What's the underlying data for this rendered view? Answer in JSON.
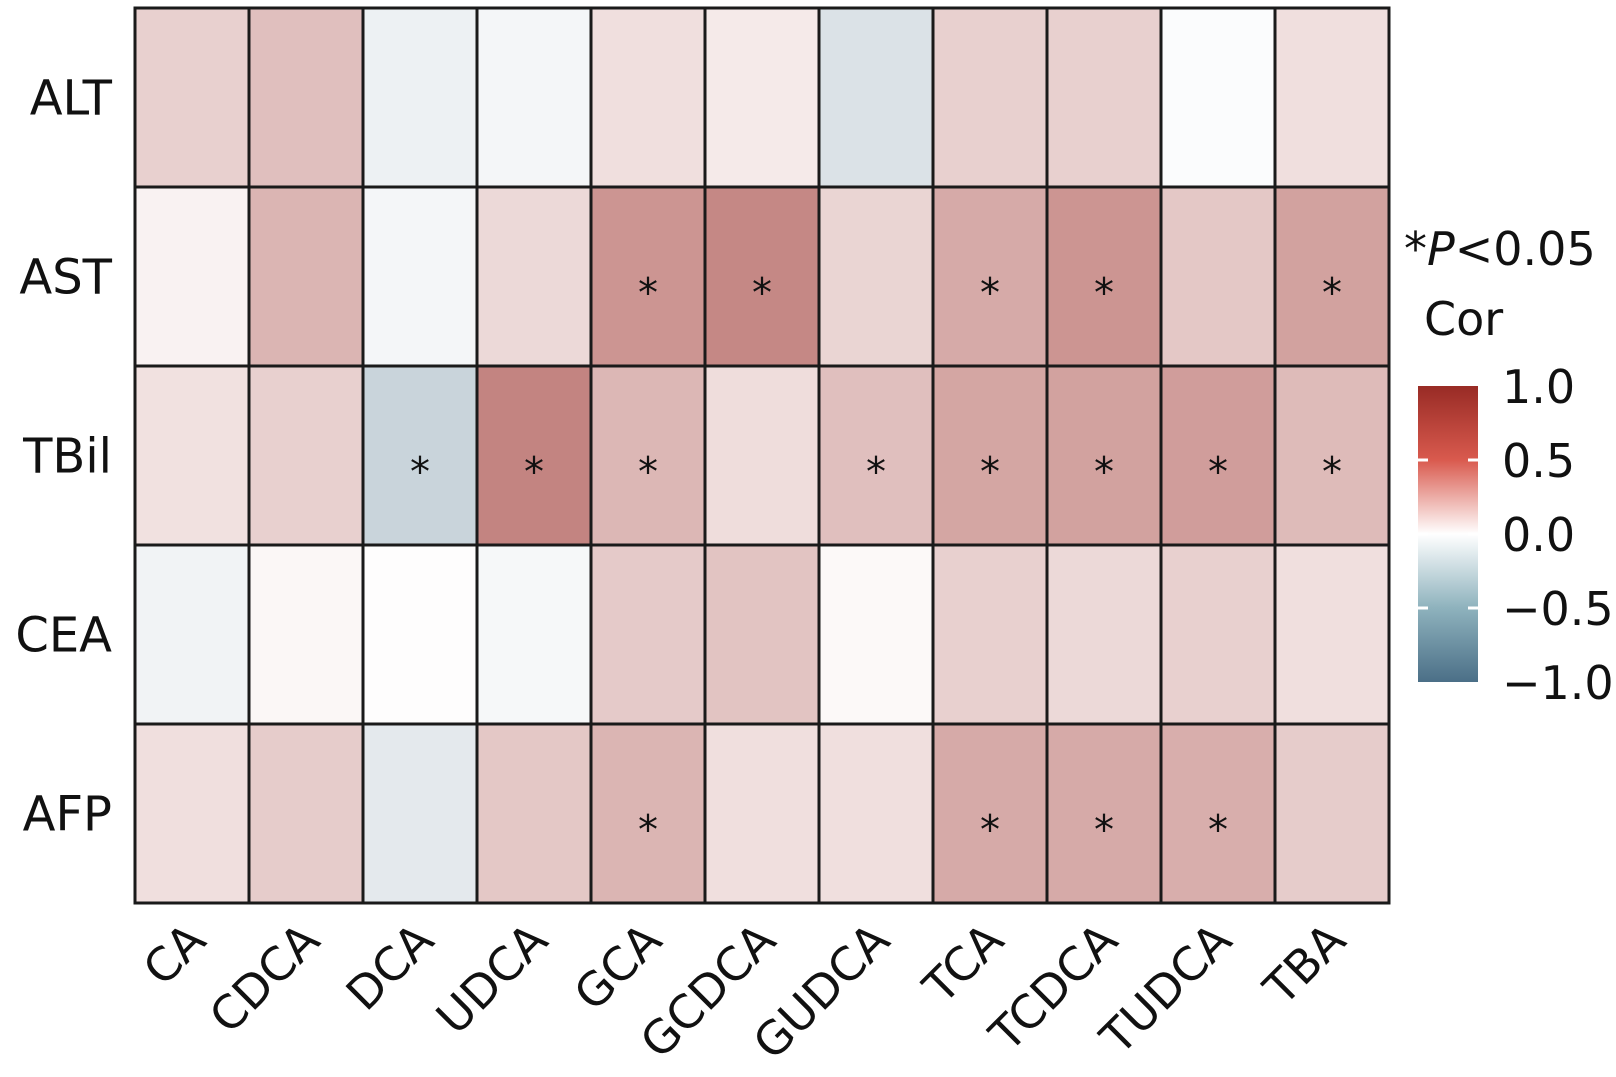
{
  "chart_data": {
    "type": "heatmap",
    "rows": [
      "ALT",
      "AST",
      "TBil",
      "CEA",
      "AFP"
    ],
    "columns": [
      "CA",
      "CDCA",
      "DCA",
      "UDCA",
      "GCA",
      "GCDCA",
      "GUDCA",
      "TCA",
      "TCDCA",
      "TUDCA",
      "TBA"
    ],
    "values": [
      [
        0.22,
        0.3,
        -0.1,
        -0.06,
        0.15,
        0.1,
        -0.2,
        0.22,
        0.22,
        -0.02,
        0.15
      ],
      [
        0.06,
        0.35,
        -0.06,
        0.18,
        0.5,
        0.56,
        0.2,
        0.4,
        0.5,
        0.26,
        0.44
      ],
      [
        0.14,
        0.22,
        -0.3,
        0.58,
        0.34,
        0.16,
        0.3,
        0.42,
        0.44,
        0.46,
        0.32
      ],
      [
        -0.08,
        0.04,
        0.01,
        -0.05,
        0.25,
        0.28,
        0.03,
        0.22,
        0.18,
        0.22,
        0.15
      ],
      [
        0.15,
        0.24,
        -0.15,
        0.26,
        0.35,
        0.15,
        0.15,
        0.4,
        0.4,
        0.38,
        0.24
      ]
    ],
    "significant": [
      [
        false,
        false,
        false,
        false,
        false,
        false,
        false,
        false,
        false,
        false,
        false
      ],
      [
        false,
        false,
        false,
        false,
        true,
        true,
        false,
        true,
        true,
        false,
        true
      ],
      [
        false,
        false,
        true,
        true,
        true,
        false,
        true,
        true,
        true,
        true,
        true
      ],
      [
        false,
        false,
        false,
        false,
        false,
        false,
        false,
        false,
        false,
        false,
        false
      ],
      [
        false,
        false,
        false,
        false,
        true,
        false,
        false,
        true,
        true,
        true,
        false
      ]
    ],
    "significance_marker": "*",
    "legend": {
      "title": "Cor",
      "note_star": "*",
      "note_p": "P",
      "note_rest": "<0.05",
      "range": [
        -1.0,
        1.0
      ],
      "ticks": [
        "1.0",
        "0.5",
        "0.0",
        "−0.5",
        "−1.0"
      ],
      "tick_values": [
        1.0,
        0.5,
        0.0,
        -0.5,
        -1.0
      ],
      "placement": "right"
    },
    "colors": {
      "negative": "#4b6f87",
      "neutral": "#ffffff",
      "positive": "#982b25",
      "grid": "#1a1a1a"
    }
  }
}
